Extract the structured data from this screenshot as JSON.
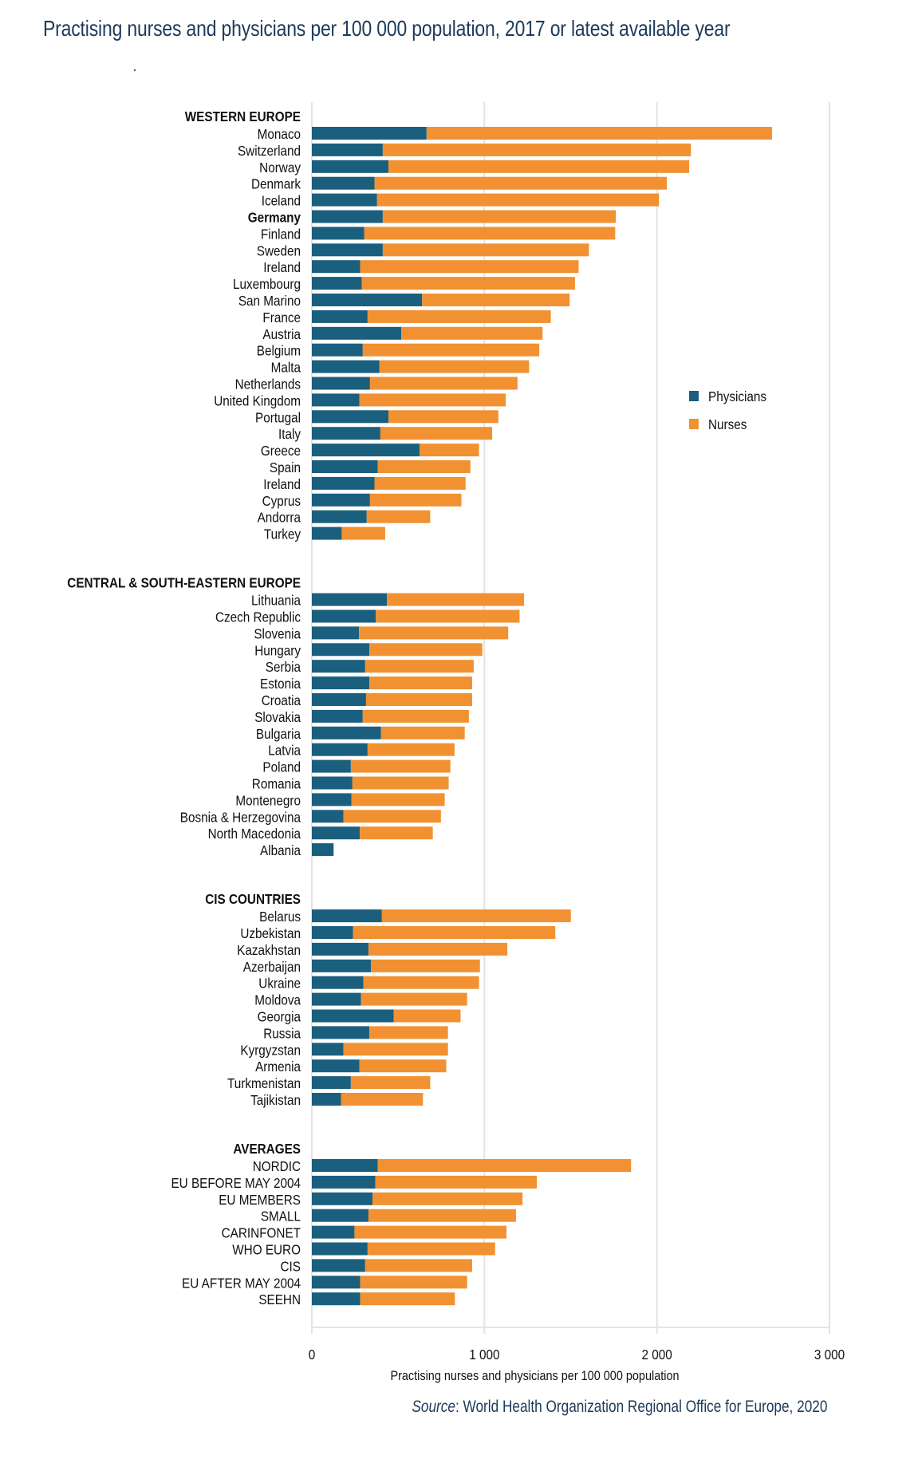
{
  "title": "Practising nurses and physicians per 100 000 population, 2017 or latest available year",
  "source_prefix": "Source",
  "source_text": ": World Health Organization Regional Office for Europe, 2020",
  "chart_data": {
    "type": "bar",
    "orientation": "horizontal",
    "stacked": true,
    "title": "Practising nurses and physicians per 100 000 population, 2017 or latest available year",
    "xlabel": "Practising nurses and physicians per 100 000 population",
    "ylabel": "",
    "xlim": [
      0,
      3000
    ],
    "xticks": [
      0,
      1000,
      2000,
      3000
    ],
    "xtick_labels": [
      "0",
      "1 000",
      "2 000",
      "3 000"
    ],
    "grid": true,
    "legend": {
      "position": "right",
      "entries": [
        {
          "name": "Physicians",
          "color": "#1b5f7e"
        },
        {
          "name": "Nurses",
          "color": "#f29132"
        }
      ]
    },
    "series_order": [
      "Physicians",
      "Nurses"
    ],
    "groups": [
      {
        "name": "WESTERN EUROPE",
        "rows": [
          {
            "label": "Monaco",
            "physicians": 665,
            "nurses": 2002,
            "bold": false
          },
          {
            "label": "Switzerland",
            "physicians": 411,
            "nurses": 1786,
            "bold": false
          },
          {
            "label": "Norway",
            "physicians": 444,
            "nurses": 1743,
            "bold": false
          },
          {
            "label": "Denmark",
            "physicians": 363,
            "nurses": 1694,
            "bold": false
          },
          {
            "label": "Iceland",
            "physicians": 378,
            "nurses": 1634,
            "bold": false
          },
          {
            "label": "Germany",
            "physicians": 411,
            "nurses": 1351,
            "bold": true
          },
          {
            "label": "Finland",
            "physicians": 304,
            "nurses": 1454,
            "bold": false
          },
          {
            "label": "Sweden",
            "physicians": 411,
            "nurses": 1195,
            "bold": false
          },
          {
            "label": "Ireland",
            "physicians": 280,
            "nurses": 1266,
            "bold": false
          },
          {
            "label": "Luxembourg",
            "physicians": 290,
            "nurses": 1235,
            "bold": false
          },
          {
            "label": "San Marino",
            "physicians": 639,
            "nurses": 855,
            "bold": false
          },
          {
            "label": "France",
            "physicians": 323,
            "nurses": 1062,
            "bold": false
          },
          {
            "label": "Austria",
            "physicians": 518,
            "nurses": 819,
            "bold": false
          },
          {
            "label": "Belgium",
            "physicians": 295,
            "nurses": 1023,
            "bold": false
          },
          {
            "label": "Malta",
            "physicians": 392,
            "nurses": 867,
            "bold": false
          },
          {
            "label": "Netherlands",
            "physicians": 337,
            "nurses": 855,
            "bold": false
          },
          {
            "label": "United Kingdom",
            "physicians": 276,
            "nurses": 848,
            "bold": false
          },
          {
            "label": "Portugal",
            "physicians": 444,
            "nurses": 637,
            "bold": false
          },
          {
            "label": "Italy",
            "physicians": 397,
            "nurses": 648,
            "bold": false
          },
          {
            "label": "Greece",
            "physicians": 625,
            "nurses": 344,
            "bold": false
          },
          {
            "label": "Spain",
            "physicians": 382,
            "nurses": 537,
            "bold": false
          },
          {
            "label": "Ireland",
            "physicians": 363,
            "nurses": 528,
            "bold": false
          },
          {
            "label": "Cyprus",
            "physicians": 337,
            "nurses": 530,
            "bold": false
          },
          {
            "label": "Andorra",
            "physicians": 318,
            "nurses": 368,
            "bold": false
          },
          {
            "label": "Turkey",
            "physicians": 173,
            "nurses": 252,
            "bold": false
          }
        ]
      },
      {
        "name": "CENTRAL & SOUTH-EASTERN EUROPE",
        "rows": [
          {
            "label": "Lithuania",
            "physicians": 435,
            "nurses": 795,
            "bold": false
          },
          {
            "label": "Czech Republic",
            "physicians": 371,
            "nurses": 833,
            "bold": false
          },
          {
            "label": "Slovenia",
            "physicians": 273,
            "nurses": 865,
            "bold": false
          },
          {
            "label": "Hungary",
            "physicians": 333,
            "nurses": 655,
            "bold": false
          },
          {
            "label": "Serbia",
            "physicians": 309,
            "nurses": 629,
            "bold": false
          },
          {
            "label": "Estonia",
            "physicians": 333,
            "nurses": 596,
            "bold": false
          },
          {
            "label": "Croatia",
            "physicians": 314,
            "nurses": 615,
            "bold": false
          },
          {
            "label": "Slovakia",
            "physicians": 295,
            "nurses": 615,
            "bold": false
          },
          {
            "label": "Bulgaria",
            "physicians": 401,
            "nurses": 485,
            "bold": false
          },
          {
            "label": "Latvia",
            "physicians": 323,
            "nurses": 504,
            "bold": false
          },
          {
            "label": "Poland",
            "physicians": 226,
            "nurses": 577,
            "bold": false
          },
          {
            "label": "Romania",
            "physicians": 235,
            "nurses": 558,
            "bold": false
          },
          {
            "label": "Montenegro",
            "physicians": 230,
            "nurses": 540,
            "bold": false
          },
          {
            "label": "Bosnia & Herzegovina",
            "physicians": 183,
            "nurses": 565,
            "bold": false
          },
          {
            "label": "North Macedonia",
            "physicians": 278,
            "nurses": 423,
            "bold": false
          },
          {
            "label": "Albania",
            "physicians": 126,
            "nurses": 0,
            "bold": false
          }
        ]
      },
      {
        "name": "CIS COUNTRIES",
        "rows": [
          {
            "label": "Belarus",
            "physicians": 406,
            "nurses": 1095,
            "bold": false
          },
          {
            "label": "Uzbekistan",
            "physicians": 238,
            "nurses": 1173,
            "bold": false
          },
          {
            "label": "Kazakhstan",
            "physicians": 328,
            "nurses": 805,
            "bold": false
          },
          {
            "label": "Azerbaijan",
            "physicians": 342,
            "nurses": 632,
            "bold": false
          },
          {
            "label": "Ukraine",
            "physicians": 299,
            "nurses": 670,
            "bold": false
          },
          {
            "label": "Moldova",
            "physicians": 285,
            "nurses": 615,
            "bold": false
          },
          {
            "label": "Georgia",
            "physicians": 475,
            "nurses": 387,
            "bold": false
          },
          {
            "label": "Russia",
            "physicians": 333,
            "nurses": 456,
            "bold": false
          },
          {
            "label": "Kyrgyzstan",
            "physicians": 183,
            "nurses": 606,
            "bold": false
          },
          {
            "label": "Armenia",
            "physicians": 276,
            "nurses": 503,
            "bold": false
          },
          {
            "label": "Turkmenistan",
            "physicians": 226,
            "nurses": 460,
            "bold": false
          },
          {
            "label": "Tajikistan",
            "physicians": 169,
            "nurses": 475,
            "bold": false
          }
        ]
      },
      {
        "name": "AVERAGES",
        "rows": [
          {
            "label": "NORDIC",
            "physicians": 382,
            "nurses": 1468,
            "bold": false
          },
          {
            "label": "EU BEFORE MAY 2004",
            "physicians": 368,
            "nurses": 936,
            "bold": false
          },
          {
            "label": "EU MEMBERS",
            "physicians": 352,
            "nurses": 869,
            "bold": false
          },
          {
            "label": "SMALL",
            "physicians": 328,
            "nurses": 855,
            "bold": false
          },
          {
            "label": "CARINFONET",
            "physicians": 247,
            "nurses": 881,
            "bold": false
          },
          {
            "label": "WHO EURO",
            "physicians": 323,
            "nurses": 739,
            "bold": false
          },
          {
            "label": "CIS",
            "physicians": 309,
            "nurses": 620,
            "bold": false
          },
          {
            "label": "EU AFTER MAY 2004",
            "physicians": 280,
            "nurses": 620,
            "bold": false
          },
          {
            "label": "SEEHN",
            "physicians": 280,
            "nurses": 549,
            "bold": false
          }
        ]
      }
    ]
  }
}
